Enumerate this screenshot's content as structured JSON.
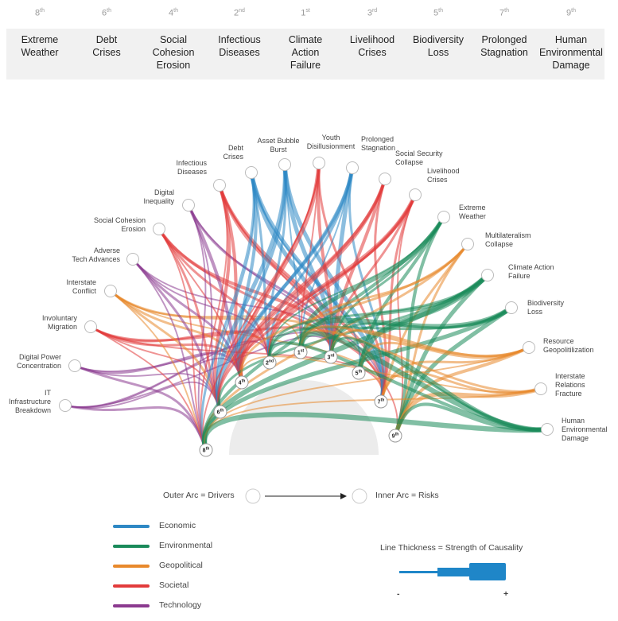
{
  "ranking": [
    {
      "rank": "8",
      "suffix": "th",
      "title": [
        "Extreme",
        "Weather"
      ]
    },
    {
      "rank": "6",
      "suffix": "th",
      "title": [
        "Debt",
        "Crises"
      ]
    },
    {
      "rank": "4",
      "suffix": "th",
      "title": [
        "Social",
        "Cohesion",
        "Erosion"
      ]
    },
    {
      "rank": "2",
      "suffix": "nd",
      "title": [
        "Infectious",
        "Diseases"
      ]
    },
    {
      "rank": "1",
      "suffix": "st",
      "title": [
        "Climate",
        "Action",
        "Failure"
      ]
    },
    {
      "rank": "3",
      "suffix": "rd",
      "title": [
        "Livelihood",
        "Crises"
      ]
    },
    {
      "rank": "5",
      "suffix": "th",
      "title": [
        "Biodiversity",
        "Loss"
      ]
    },
    {
      "rank": "7",
      "suffix": "th",
      "title": [
        "Prolonged",
        "Stagnation"
      ]
    },
    {
      "rank": "9",
      "suffix": "th",
      "title": [
        "Human",
        "Environmental",
        "Damage"
      ]
    }
  ],
  "outer_nodes": [
    {
      "id": "it",
      "label": [
        "IT",
        "Infrastructure",
        "Breakdown"
      ],
      "category": "technology"
    },
    {
      "id": "dpc",
      "label": [
        "Digital Power",
        "Concentration"
      ],
      "category": "technology"
    },
    {
      "id": "im",
      "label": [
        "Involuntary",
        "Migration"
      ],
      "category": "societal"
    },
    {
      "id": "ic",
      "label": [
        "Interstate",
        "Conflict"
      ],
      "category": "geopolitical"
    },
    {
      "id": "ata",
      "label": [
        "Adverse",
        "Tech Advances"
      ],
      "category": "technology"
    },
    {
      "id": "sce",
      "label": [
        "Social Cohesion",
        "Erosion"
      ],
      "category": "societal"
    },
    {
      "id": "di",
      "label": [
        "Digital",
        "Inequality"
      ],
      "category": "technology"
    },
    {
      "id": "id",
      "label": [
        "Infectious",
        "Diseases"
      ],
      "category": "societal"
    },
    {
      "id": "dc",
      "label": [
        "Debt",
        "Crises"
      ],
      "category": "economic"
    },
    {
      "id": "abb",
      "label": [
        "Asset Bubble",
        "Burst"
      ],
      "category": "economic"
    },
    {
      "id": "yd",
      "label": [
        "Youth",
        "Disillusionment"
      ],
      "category": "societal"
    },
    {
      "id": "ps",
      "label": [
        "Prolonged",
        "Stagnation"
      ],
      "category": "economic"
    },
    {
      "id": "ssc",
      "label": [
        "Social Security",
        "Collapse"
      ],
      "category": "societal"
    },
    {
      "id": "lc",
      "label": [
        "Livelihood",
        "Crises"
      ],
      "category": "societal"
    },
    {
      "id": "ew",
      "label": [
        "Extreme",
        "Weather"
      ],
      "category": "environmental"
    },
    {
      "id": "mc",
      "label": [
        "Multilateralism",
        "Collapse"
      ],
      "category": "geopolitical"
    },
    {
      "id": "caf",
      "label": [
        "Climate Action",
        "Failure"
      ],
      "category": "environmental"
    },
    {
      "id": "bl",
      "label": [
        "Biodiversity",
        "Loss"
      ],
      "category": "environmental"
    },
    {
      "id": "rg",
      "label": [
        "Resource",
        "Geopolitilization"
      ],
      "category": "geopolitical"
    },
    {
      "id": "irf",
      "label": [
        "Interstate",
        "Relations",
        "Fracture"
      ],
      "category": "geopolitical"
    },
    {
      "id": "hed",
      "label": [
        "Human",
        "Environmental",
        "Damage"
      ],
      "category": "environmental"
    }
  ],
  "inner_nodes": [
    {
      "rank": "8",
      "suffix": "th"
    },
    {
      "rank": "6",
      "suffix": "th"
    },
    {
      "rank": "4",
      "suffix": "th"
    },
    {
      "rank": "2",
      "suffix": "nd"
    },
    {
      "rank": "1",
      "suffix": "st"
    },
    {
      "rank": "3",
      "suffix": "rd"
    },
    {
      "rank": "5",
      "suffix": "th"
    },
    {
      "rank": "7",
      "suffix": "th"
    },
    {
      "rank": "9",
      "suffix": "th"
    }
  ],
  "links": [
    {
      "from": "it",
      "to": "8",
      "w": 2
    },
    {
      "from": "it",
      "to": "6",
      "w": 1
    },
    {
      "from": "it",
      "to": "4",
      "w": 1
    },
    {
      "from": "it",
      "to": "2",
      "w": 1
    },
    {
      "from": "it",
      "to": "3",
      "w": 1
    },
    {
      "from": "dpc",
      "to": "8",
      "w": 2
    },
    {
      "from": "dpc",
      "to": "6",
      "w": 1
    },
    {
      "from": "dpc",
      "to": "4",
      "w": 2
    },
    {
      "from": "dpc",
      "to": "3",
      "w": 1
    },
    {
      "from": "im",
      "to": "8",
      "w": 1
    },
    {
      "from": "im",
      "to": "6",
      "w": 1
    },
    {
      "from": "im",
      "to": "4",
      "w": 2
    },
    {
      "from": "im",
      "to": "2",
      "w": 2
    },
    {
      "from": "im",
      "to": "3",
      "w": 2
    },
    {
      "from": "im",
      "to": "7",
      "w": 1
    },
    {
      "from": "ic",
      "to": "8",
      "w": 1
    },
    {
      "from": "ic",
      "to": "6",
      "w": 2
    },
    {
      "from": "ic",
      "to": "4",
      "w": 2
    },
    {
      "from": "ic",
      "to": "3",
      "w": 2
    },
    {
      "from": "ic",
      "to": "7",
      "w": 1
    },
    {
      "from": "ic",
      "to": "1",
      "w": 1
    },
    {
      "from": "ata",
      "to": "8",
      "w": 1
    },
    {
      "from": "ata",
      "to": "6",
      "w": 2
    },
    {
      "from": "ata",
      "to": "4",
      "w": 2
    },
    {
      "from": "ata",
      "to": "2",
      "w": 1
    },
    {
      "from": "ata",
      "to": "3",
      "w": 1
    },
    {
      "from": "sce",
      "to": "8",
      "w": 1
    },
    {
      "from": "sce",
      "to": "6",
      "w": 2
    },
    {
      "from": "sce",
      "to": "4",
      "w": 1
    },
    {
      "from": "sce",
      "to": "2",
      "w": 2
    },
    {
      "from": "sce",
      "to": "3",
      "w": 3
    },
    {
      "from": "sce",
      "to": "7",
      "w": 2
    },
    {
      "from": "di",
      "to": "8",
      "w": 1
    },
    {
      "from": "di",
      "to": "6",
      "w": 1
    },
    {
      "from": "di",
      "to": "4",
      "w": 3
    },
    {
      "from": "di",
      "to": "3",
      "w": 2
    },
    {
      "from": "di",
      "to": "7",
      "w": 1
    },
    {
      "from": "id",
      "to": "8",
      "w": 1
    },
    {
      "from": "id",
      "to": "6",
      "w": 3
    },
    {
      "from": "id",
      "to": "4",
      "w": 3
    },
    {
      "from": "id",
      "to": "3",
      "w": 3
    },
    {
      "from": "id",
      "to": "7",
      "w": 3
    },
    {
      "from": "id",
      "to": "9",
      "w": 1
    },
    {
      "from": "dc",
      "to": "8",
      "w": 2
    },
    {
      "from": "dc",
      "to": "6",
      "w": 1
    },
    {
      "from": "dc",
      "to": "4",
      "w": 3
    },
    {
      "from": "dc",
      "to": "2",
      "w": 2
    },
    {
      "from": "dc",
      "to": "3",
      "w": 4
    },
    {
      "from": "dc",
      "to": "7",
      "w": 4
    },
    {
      "from": "dc",
      "to": "5",
      "w": 1
    },
    {
      "from": "abb",
      "to": "6",
      "w": 4
    },
    {
      "from": "abb",
      "to": "4",
      "w": 3
    },
    {
      "from": "abb",
      "to": "2",
      "w": 2
    },
    {
      "from": "abb",
      "to": "3",
      "w": 4
    },
    {
      "from": "abb",
      "to": "7",
      "w": 4
    },
    {
      "from": "abb",
      "to": "1",
      "w": 1
    },
    {
      "from": "yd",
      "to": "8",
      "w": 1
    },
    {
      "from": "yd",
      "to": "6",
      "w": 1
    },
    {
      "from": "yd",
      "to": "4",
      "w": 4
    },
    {
      "from": "yd",
      "to": "3",
      "w": 3
    },
    {
      "from": "yd",
      "to": "7",
      "w": 2
    },
    {
      "from": "yd",
      "to": "1",
      "w": 1
    },
    {
      "from": "ps",
      "to": "6",
      "w": 3
    },
    {
      "from": "ps",
      "to": "4",
      "w": 3
    },
    {
      "from": "ps",
      "to": "2",
      "w": 2
    },
    {
      "from": "ps",
      "to": "3",
      "w": 4
    },
    {
      "from": "ps",
      "to": "7",
      "w": 2
    },
    {
      "from": "ps",
      "to": "1",
      "w": 1
    },
    {
      "from": "ssc",
      "to": "6",
      "w": 2
    },
    {
      "from": "ssc",
      "to": "4",
      "w": 3
    },
    {
      "from": "ssc",
      "to": "2",
      "w": 2
    },
    {
      "from": "ssc",
      "to": "3",
      "w": 3
    },
    {
      "from": "ssc",
      "to": "7",
      "w": 2
    },
    {
      "from": "lc",
      "to": "6",
      "w": 2
    },
    {
      "from": "lc",
      "to": "4",
      "w": 4
    },
    {
      "from": "lc",
      "to": "2",
      "w": 2
    },
    {
      "from": "lc",
      "to": "3",
      "w": 2
    },
    {
      "from": "lc",
      "to": "7",
      "w": 2
    },
    {
      "from": "lc",
      "to": "9",
      "w": 1
    },
    {
      "from": "ew",
      "to": "8",
      "w": 3
    },
    {
      "from": "ew",
      "to": "1",
      "w": 4
    },
    {
      "from": "ew",
      "to": "5",
      "w": 3
    },
    {
      "from": "ew",
      "to": "9",
      "w": 3
    },
    {
      "from": "ew",
      "to": "3",
      "w": 2
    },
    {
      "from": "ew",
      "to": "2",
      "w": 1
    },
    {
      "from": "mc",
      "to": "8",
      "w": 2
    },
    {
      "from": "mc",
      "to": "1",
      "w": 2
    },
    {
      "from": "mc",
      "to": "4",
      "w": 2
    },
    {
      "from": "mc",
      "to": "7",
      "w": 2
    },
    {
      "from": "mc",
      "to": "9",
      "w": 2
    },
    {
      "from": "caf",
      "to": "8",
      "w": 5
    },
    {
      "from": "caf",
      "to": "6",
      "w": 2
    },
    {
      "from": "caf",
      "to": "5",
      "w": 5
    },
    {
      "from": "caf",
      "to": "3",
      "w": 3
    },
    {
      "from": "caf",
      "to": "9",
      "w": 4
    },
    {
      "from": "caf",
      "to": "2",
      "w": 2
    },
    {
      "from": "bl",
      "to": "8",
      "w": 4
    },
    {
      "from": "bl",
      "to": "1",
      "w": 5
    },
    {
      "from": "bl",
      "to": "3",
      "w": 2
    },
    {
      "from": "bl",
      "to": "9",
      "w": 4
    },
    {
      "from": "bl",
      "to": "2",
      "w": 2
    },
    {
      "from": "rg",
      "to": "8",
      "w": 1
    },
    {
      "from": "rg",
      "to": "1",
      "w": 2
    },
    {
      "from": "rg",
      "to": "5",
      "w": 2
    },
    {
      "from": "rg",
      "to": "7",
      "w": 2
    },
    {
      "from": "rg",
      "to": "9",
      "w": 3
    },
    {
      "from": "rg",
      "to": "3",
      "w": 2
    },
    {
      "from": "irf",
      "to": "8",
      "w": 1
    },
    {
      "from": "irf",
      "to": "1",
      "w": 2
    },
    {
      "from": "irf",
      "to": "4",
      "w": 1
    },
    {
      "from": "irf",
      "to": "7",
      "w": 2
    },
    {
      "from": "irf",
      "to": "9",
      "w": 4
    },
    {
      "from": "hed",
      "to": "8",
      "w": 5
    },
    {
      "from": "hed",
      "to": "1",
      "w": 5
    },
    {
      "from": "hed",
      "to": "5",
      "w": 4
    },
    {
      "from": "hed",
      "to": "3",
      "w": 2
    },
    {
      "from": "hed",
      "to": "9",
      "w": 3
    },
    {
      "from": "hed",
      "to": "2",
      "w": 3
    }
  ],
  "colors": {
    "economic": "#2e88c4",
    "environmental": "#1a8a5a",
    "geopolitical": "#e8892c",
    "societal": "#e23b3b",
    "technology": "#8b3a8f",
    "node_stroke": "#bbbbbb",
    "center": "#ececec"
  },
  "legend": {
    "outer_arc": "Outer Arc = Drivers",
    "inner_arc": "Inner Arc = Risks",
    "categories": [
      {
        "key": "economic",
        "label": "Economic"
      },
      {
        "key": "environmental",
        "label": "Environmental"
      },
      {
        "key": "geopolitical",
        "label": "Geopolitical"
      },
      {
        "key": "societal",
        "label": "Societal"
      },
      {
        "key": "technology",
        "label": "Technology"
      }
    ],
    "thickness_title": "Line Thickness = Strength of Causality",
    "minus": "-",
    "plus": "+"
  }
}
